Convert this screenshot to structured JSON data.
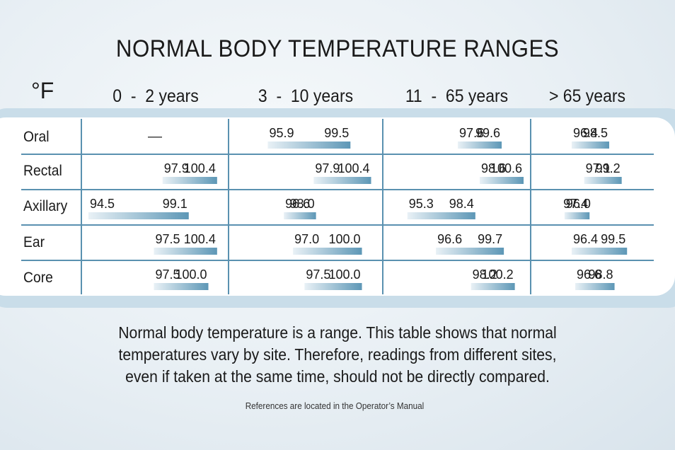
{
  "chart_data": {
    "type": "table",
    "title": "NORMAL BODY TEMPERATURE RANGES",
    "unit": "°F",
    "age_groups": [
      "0  -  2 years",
      "3  -  10 years",
      "11  -  65 years",
      "> 65 years"
    ],
    "sites": [
      {
        "name": "Oral",
        "ranges": [
          null,
          [
            95.9,
            99.5
          ],
          [
            97.6,
            99.6
          ],
          [
            96.4,
            98.5
          ]
        ]
      },
      {
        "name": "Rectal",
        "ranges": [
          [
            97.9,
            100.4
          ],
          [
            97.9,
            100.4
          ],
          [
            98.6,
            100.6
          ],
          [
            97.1,
            99.2
          ]
        ]
      },
      {
        "name": "Axillary",
        "ranges": [
          [
            94.5,
            99.1
          ],
          [
            96.6,
            98.0
          ],
          [
            95.3,
            98.4
          ],
          [
            96.0,
            97.4
          ]
        ]
      },
      {
        "name": "Ear",
        "ranges": [
          [
            97.5,
            100.4
          ],
          [
            97.0,
            100.0
          ],
          [
            96.6,
            99.7
          ],
          [
            96.4,
            99.5
          ]
        ]
      },
      {
        "name": "Core",
        "ranges": [
          [
            97.5,
            100.0
          ],
          [
            97.5,
            100.0
          ],
          [
            98.2,
            100.2
          ],
          [
            96.6,
            98.8
          ]
        ]
      }
    ],
    "na_mark": "—",
    "value_scale": [
      94.5,
      100.6
    ],
    "bar_color_light": "#e9f1f6",
    "bar_color_dark": "#5d97b6"
  },
  "grid_color": "#5a91b0",
  "note": [
    "Normal body temperature is a range. This table shows that normal",
    "temperatures vary by site. Therefore, readings from different sites,",
    "even if taken at the same time, should not be directly compared."
  ],
  "references": "References are located in the Operator’s Manual"
}
